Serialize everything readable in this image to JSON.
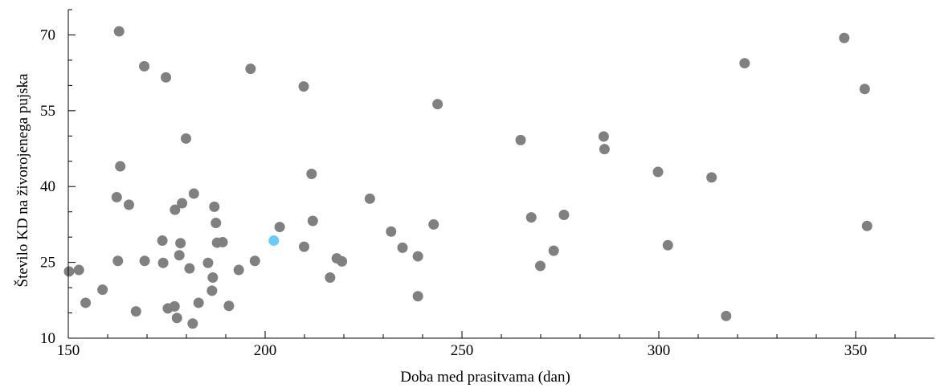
{
  "chart_data": {
    "type": "scatter",
    "xlabel": "Doba med prasitvama (dan)",
    "ylabel": "Število KD na živorojenega pujska",
    "xlim": [
      150,
      370
    ],
    "ylim": [
      10,
      75
    ],
    "x_ticks": [
      150,
      200,
      250,
      300,
      350
    ],
    "x_tick_labels": [
      "150",
      "200",
      "250",
      "300",
      "350"
    ],
    "y_ticks": [
      10,
      25,
      40,
      55,
      70
    ],
    "y_tick_labels": [
      "10",
      "25",
      "40",
      "55",
      "70"
    ],
    "grid": false,
    "colors": {
      "points": "#808080",
      "highlight": "#66ccff"
    },
    "series": [
      {
        "points": [
          [
            150.2,
            23.2
          ],
          [
            152.7,
            23.5
          ],
          [
            154.4,
            17.0
          ],
          [
            158.7,
            19.6
          ],
          [
            162.3,
            37.9
          ],
          [
            162.6,
            25.3
          ],
          [
            162.9,
            70.7
          ],
          [
            163.2,
            44.0
          ],
          [
            165.4,
            36.4
          ],
          [
            167.2,
            15.3
          ],
          [
            169.3,
            63.8
          ],
          [
            169.4,
            25.3
          ],
          [
            173.9,
            29.3
          ],
          [
            174.1,
            24.9
          ],
          [
            174.8,
            61.6
          ],
          [
            175.3,
            15.9
          ],
          [
            177.0,
            16.3
          ],
          [
            177.1,
            35.4
          ],
          [
            177.6,
            14.0
          ],
          [
            178.2,
            26.4
          ],
          [
            178.5,
            28.8
          ],
          [
            178.9,
            36.7
          ],
          [
            179.9,
            49.5
          ],
          [
            180.8,
            23.8
          ],
          [
            181.6,
            12.9
          ],
          [
            181.9,
            38.6
          ],
          [
            183.1,
            17.0
          ],
          [
            185.5,
            24.9
          ],
          [
            186.5,
            19.4
          ],
          [
            186.7,
            22.0
          ],
          [
            187.1,
            36.0
          ],
          [
            187.5,
            32.8
          ],
          [
            187.8,
            28.9
          ],
          [
            189.2,
            29.0
          ],
          [
            190.8,
            16.4
          ],
          [
            193.3,
            23.5
          ],
          [
            196.3,
            63.3
          ],
          [
            197.4,
            25.3
          ],
          [
            203.7,
            32.0
          ],
          [
            209.8,
            59.8
          ],
          [
            209.9,
            28.1
          ],
          [
            211.8,
            42.5
          ],
          [
            212.1,
            33.2
          ],
          [
            216.5,
            22.0
          ],
          [
            218.2,
            25.8
          ],
          [
            219.5,
            25.2
          ],
          [
            226.6,
            37.6
          ],
          [
            232.0,
            31.1
          ],
          [
            234.9,
            27.9
          ],
          [
            238.8,
            26.2
          ],
          [
            238.8,
            18.3
          ],
          [
            242.8,
            32.5
          ],
          [
            243.8,
            56.3
          ],
          [
            264.9,
            49.2
          ],
          [
            267.6,
            33.9
          ],
          [
            269.9,
            24.3
          ],
          [
            273.3,
            27.3
          ],
          [
            275.9,
            34.4
          ],
          [
            286.0,
            49.9
          ],
          [
            286.2,
            47.4
          ],
          [
            299.8,
            42.9
          ],
          [
            302.3,
            28.4
          ],
          [
            313.4,
            41.8
          ],
          [
            317.1,
            14.4
          ],
          [
            321.8,
            64.4
          ],
          [
            347.1,
            69.4
          ],
          [
            352.3,
            59.3
          ],
          [
            352.9,
            32.2
          ]
        ]
      },
      {
        "points": [
          [
            202.2,
            29.3
          ]
        ]
      }
    ]
  }
}
